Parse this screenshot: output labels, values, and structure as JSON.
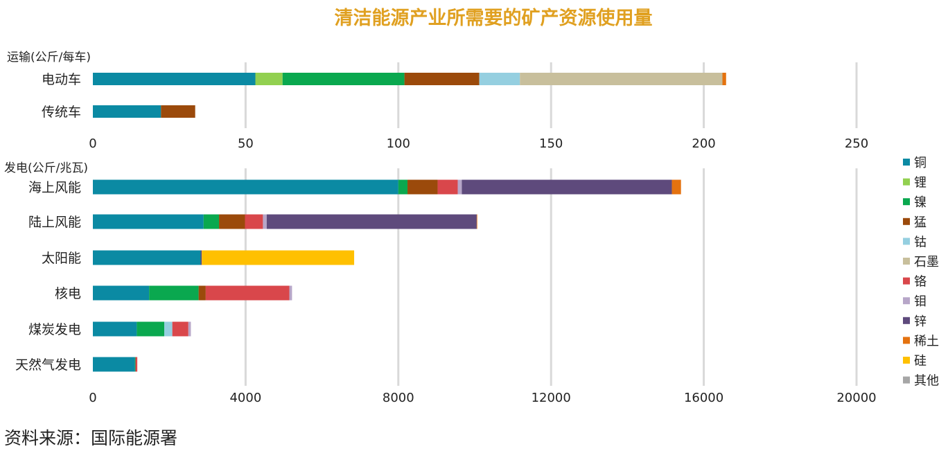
{
  "chart_data": {
    "title": "清洁能源产业所需要的矿产资源使用量",
    "source": "资料来源：国际能源署",
    "legend": [
      {
        "name": "铜",
        "color": "#0b8aa3"
      },
      {
        "name": "锂",
        "color": "#92d050"
      },
      {
        "name": "镍",
        "color": "#0aa84f"
      },
      {
        "name": "猛",
        "color": "#9b4a0b"
      },
      {
        "name": "钴",
        "color": "#95cfe0"
      },
      {
        "name": "石墨",
        "color": "#c8bf9c"
      },
      {
        "name": "铬",
        "color": "#d9474b"
      },
      {
        "name": "钼",
        "color": "#b7a6c8"
      },
      {
        "name": "锌",
        "color": "#5e4a7c"
      },
      {
        "name": "稀土",
        "color": "#e4720f"
      },
      {
        "name": "硅",
        "color": "#ffc000"
      },
      {
        "name": "其他",
        "color": "#a6a6a6"
      }
    ],
    "panels": [
      {
        "type": "bar",
        "orientation": "horizontal",
        "stacked": true,
        "ylabel": "运输(公斤/每车)",
        "xlim": [
          0,
          250
        ],
        "xticks": [
          0,
          50,
          100,
          150,
          200,
          250
        ],
        "categories": [
          "电动车",
          "传统车"
        ],
        "series": [
          {
            "name": "铜",
            "values": [
              53.2,
              22.3
            ]
          },
          {
            "name": "锂",
            "values": [
              8.9,
              0
            ]
          },
          {
            "name": "镍",
            "values": [
              39.9,
              0
            ]
          },
          {
            "name": "猛",
            "values": [
              24.5,
              11.2
            ]
          },
          {
            "name": "钴",
            "values": [
              13.3,
              0
            ]
          },
          {
            "name": "石墨",
            "values": [
              66.3,
              0
            ]
          },
          {
            "name": "铬",
            "values": [
              0,
              0
            ]
          },
          {
            "name": "钼",
            "values": [
              0,
              0
            ]
          },
          {
            "name": "锌",
            "values": [
              0,
              0
            ]
          },
          {
            "name": "稀土",
            "values": [
              1.2,
              0
            ]
          },
          {
            "name": "硅",
            "values": [
              0,
              0
            ]
          },
          {
            "name": "其他",
            "values": [
              0,
              0
            ]
          }
        ]
      },
      {
        "type": "bar",
        "orientation": "horizontal",
        "stacked": true,
        "ylabel": "发电(公斤/兆瓦)",
        "xlim": [
          0,
          20000
        ],
        "xticks": [
          0,
          4000,
          8000,
          12000,
          16000,
          20000
        ],
        "categories": [
          "海上风能",
          "陆上风能",
          "太阳能",
          "核电",
          "煤炭发电",
          "天然气发电"
        ],
        "series": [
          {
            "name": "铜",
            "values": [
              8000,
              2900,
              2822,
              1473,
              1150,
              1100
            ]
          },
          {
            "name": "锂",
            "values": [
              0,
              0,
              0,
              0,
              0,
              0
            ]
          },
          {
            "name": "镍",
            "values": [
              240,
              404,
              1,
              1297,
              721,
              16
            ]
          },
          {
            "name": "猛",
            "values": [
              790,
              680,
              0,
              186,
              0,
              0
            ]
          },
          {
            "name": "钴",
            "values": [
              0,
              0,
              0,
              0,
              210,
              0
            ]
          },
          {
            "name": "石墨",
            "values": [
              0,
              0,
              0,
              0,
              0,
              0
            ]
          },
          {
            "name": "铬",
            "values": [
              525,
              470,
              0,
              2190,
              420,
              48
            ]
          },
          {
            "name": "钼",
            "values": [
              109,
              99,
              0,
              70,
              66,
              0
            ]
          },
          {
            "name": "锌",
            "values": [
              5500,
              5500,
              30,
              0,
              0,
              0
            ]
          },
          {
            "name": "稀土",
            "values": [
              239,
              14,
              0,
              0,
              0,
              0
            ]
          },
          {
            "name": "硅",
            "values": [
              0,
              0,
              3990,
              0,
              0,
              0
            ]
          },
          {
            "name": "其他",
            "values": [
              0,
              0,
              0,
              0,
              0,
              0
            ]
          }
        ]
      }
    ]
  }
}
